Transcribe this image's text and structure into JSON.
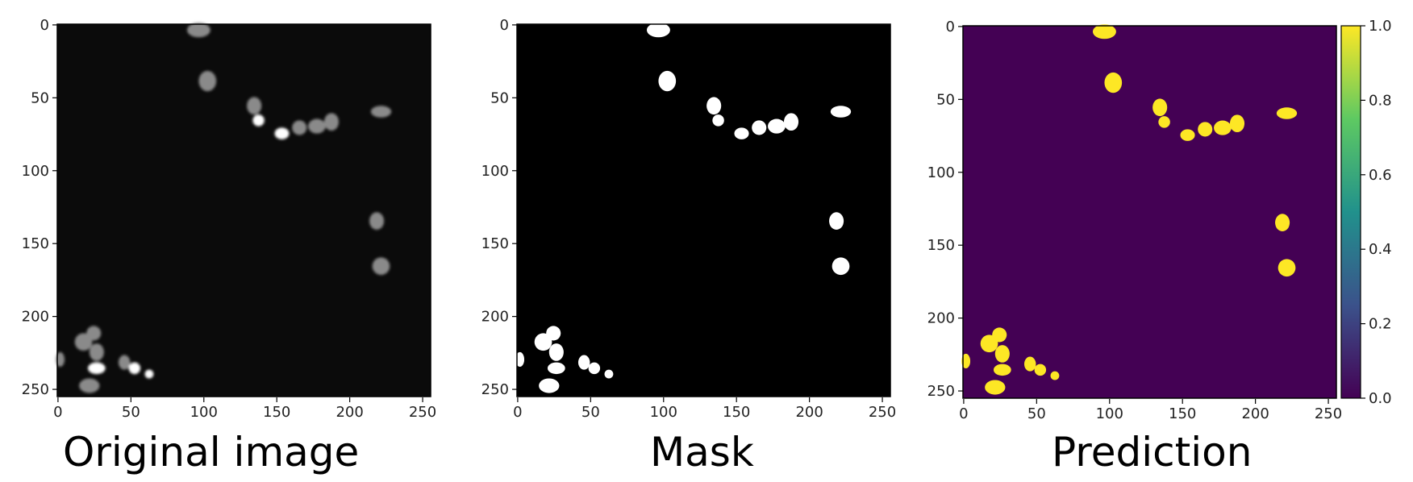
{
  "panels": [
    {
      "caption": "Original image",
      "background": "#0b0b0b",
      "x_ticks": [
        "0",
        "50",
        "100",
        "150",
        "200",
        "250"
      ],
      "y_ticks": [
        "0",
        "50",
        "100",
        "150",
        "200",
        "250"
      ]
    },
    {
      "caption": "Mask",
      "background": "#000000",
      "x_ticks": [
        "0",
        "50",
        "100",
        "150",
        "200",
        "250"
      ],
      "y_ticks": [
        "0",
        "50",
        "100",
        "150",
        "200",
        "250"
      ]
    },
    {
      "caption": "Prediction",
      "background": "#440154",
      "x_ticks": [
        "0",
        "50",
        "100",
        "150",
        "200",
        "250"
      ],
      "y_ticks": [
        "0",
        "50",
        "100",
        "150",
        "200",
        "250"
      ]
    }
  ],
  "colorbar": {
    "ticks": [
      "0.0",
      "0.2",
      "0.4",
      "0.6",
      "0.8",
      "1.0"
    ],
    "colormap": [
      "#440154",
      "#3b528b",
      "#21918c",
      "#5ec962",
      "#fde725"
    ]
  },
  "colors": {
    "nucleus_dim": "#8a8a8a",
    "nucleus_bright": "#ffffff",
    "mask_fg": "#ffffff",
    "pred_fg": "#fde725"
  }
}
